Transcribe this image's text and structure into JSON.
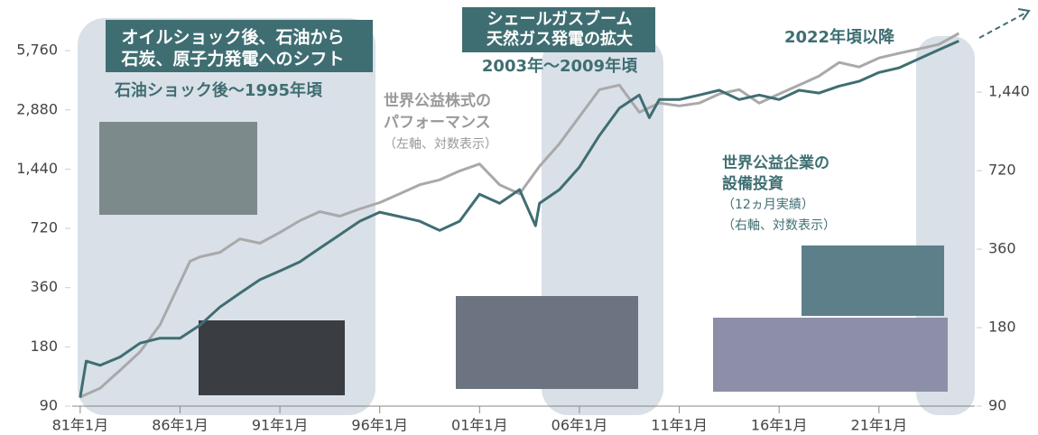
{
  "chart_data": {
    "type": "line",
    "log_scale": true,
    "xlim": [
      1980.6,
      2025.8
    ],
    "xticks": [
      {
        "value": 1981,
        "label": "81年1月"
      },
      {
        "value": 1986,
        "label": "86年1月"
      },
      {
        "value": 1991,
        "label": "91年1月"
      },
      {
        "value": 1996,
        "label": "96年1月"
      },
      {
        "value": 2001,
        "label": "01年1月"
      },
      {
        "value": 2006,
        "label": "06年1月"
      },
      {
        "value": 2011,
        "label": "11年1月"
      },
      {
        "value": 2016,
        "label": "16年1月"
      },
      {
        "value": 2021,
        "label": "21年1月"
      }
    ],
    "ylim": [
      90,
      7200
    ],
    "yticks": [
      90,
      180,
      360,
      720,
      {
        "value": 1440,
        "label": "1,440"
      },
      {
        "value": 2880,
        "label": "2,880"
      },
      {
        "value": 5760,
        "label": "5,760"
      }
    ],
    "y2lim": [
      90,
      2460
    ],
    "y2ticks": [
      90,
      180,
      360,
      720,
      {
        "value": 1440,
        "label": "1,440"
      }
    ],
    "series": [
      {
        "color": "#a9a9a9",
        "axis": "y",
        "x": [
          1981,
          1982,
          1983,
          1984,
          1985,
          1986.5,
          1987,
          1988,
          1989,
          1990,
          1991,
          1992,
          1993,
          1994,
          1995,
          1996,
          1997,
          1998,
          1999,
          2000,
          2001,
          2002,
          2003,
          2004,
          2005,
          2006,
          2007,
          2008,
          2009,
          2010,
          2011,
          2012,
          2013,
          2014,
          2015,
          2016,
          2017,
          2018,
          2019,
          2020,
          2021,
          2022,
          2023,
          2024,
          2025
        ],
        "values": [
          100,
          111,
          137,
          170,
          233,
          490,
          516,
          544,
          637,
          605,
          686,
          788,
          876,
          831,
          904,
          973,
          1080,
          1200,
          1270,
          1410,
          1530,
          1200,
          1080,
          1490,
          1940,
          2660,
          3650,
          3850,
          2800,
          3120,
          3020,
          3120,
          3470,
          3650,
          3120,
          3470,
          3850,
          4280,
          5020,
          4760,
          5290,
          5580,
          5880,
          6200,
          7050
        ]
      },
      {
        "color": "#3f6e72",
        "axis": "y2",
        "x": [
          1981,
          1981.3,
          1982,
          1983,
          1984,
          1985,
          1986,
          1987,
          1988,
          1989,
          1990,
          1991,
          1992,
          1993,
          1994,
          1995,
          1996,
          1997,
          1998,
          1999,
          2000,
          2001,
          2002,
          2003,
          2003.8,
          2004,
          2005,
          2006,
          2007,
          2008,
          2009,
          2009.5,
          2010,
          2011,
          2012,
          2013,
          2014,
          2015,
          2016,
          2017,
          2018,
          2019,
          2020,
          2021,
          2022,
          2023,
          2024,
          2025
        ],
        "values": [
          97,
          134,
          129,
          139,
          157,
          164,
          164,
          184,
          216,
          244,
          275,
          297,
          322,
          363,
          409,
          461,
          499,
          480,
          461,
          425,
          461,
          585,
          540,
          609,
          443,
          540,
          609,
          743,
          983,
          1250,
          1405,
          1150,
          1350,
          1350,
          1405,
          1465,
          1350,
          1405,
          1350,
          1465,
          1430,
          1520,
          1585,
          1715,
          1785,
          1935,
          2095,
          2265
        ]
      }
    ],
    "annotations": [
      {
        "lines": [
          "オイルショック後、石油から",
          "石炭、原子力発電へのシフト"
        ]
      },
      {
        "lines": [
          "石油ショック後～1995年頃"
        ]
      },
      {
        "lines": [
          "シェールガスブーム",
          "天然ガス発電の拡大"
        ]
      },
      {
        "lines": [
          "2003年～2009年頃"
        ]
      },
      {
        "lines": [
          "2022年頃以降"
        ]
      },
      {
        "lines": [
          "世界公益株式の",
          "パフォーマンス",
          "（左軸、対数表示）"
        ]
      },
      {
        "lines": [
          "世界公益企業の",
          "設備投資",
          "（12ヵ月実績）",
          "（右軸、対数表示）"
        ]
      }
    ]
  }
}
